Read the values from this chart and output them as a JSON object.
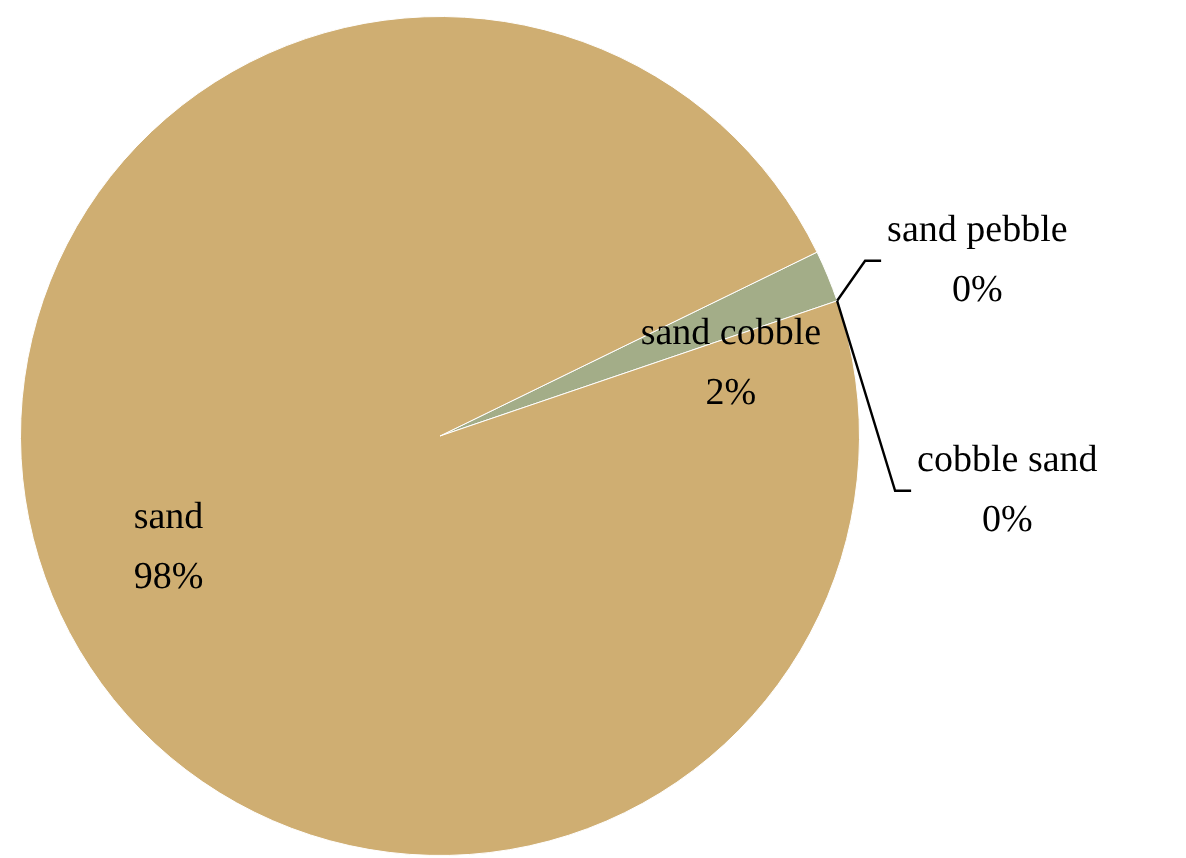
{
  "chart_data": {
    "type": "pie",
    "categories": [
      "sand cobble",
      "sand pebble",
      "cobble sand",
      "sand"
    ],
    "values": [
      2,
      0,
      0,
      98
    ],
    "colors": [
      "#a3ad88",
      "#b8c2d4",
      "#8a9bb0",
      "#cfae72"
    ],
    "value_labels": [
      "2%",
      "0%",
      "0%",
      "98%"
    ],
    "legend": false
  }
}
